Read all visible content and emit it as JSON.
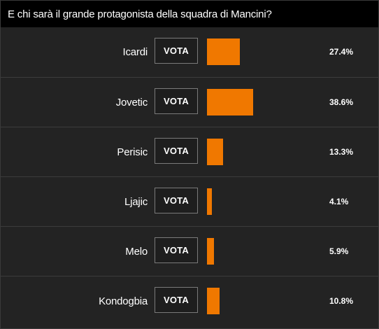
{
  "poll": {
    "title": "E chi sarà il grande protagonista della squadra di Mancini?",
    "vote_label": "VOTA",
    "bar_color": "#f07800",
    "max_percent": 38.6,
    "options": [
      {
        "name": "Icardi",
        "percent_label": "27.4%",
        "percent": 27.4
      },
      {
        "name": "Jovetic",
        "percent_label": "38.6%",
        "percent": 38.6
      },
      {
        "name": "Perisic",
        "percent_label": "13.3%",
        "percent": 13.3
      },
      {
        "name": "Ljajic",
        "percent_label": "4.1%",
        "percent": 4.1
      },
      {
        "name": "Melo",
        "percent_label": "5.9%",
        "percent": 5.9
      },
      {
        "name": "Kondogbia",
        "percent_label": "10.8%",
        "percent": 10.8
      }
    ]
  }
}
